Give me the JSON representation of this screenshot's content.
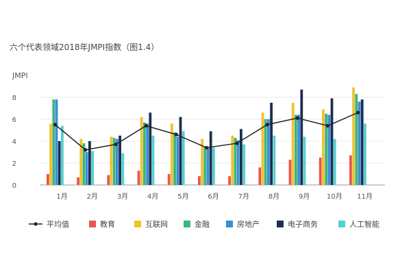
{
  "chart_data": {
    "type": "bar",
    "title": "六个代表领域2018年JMPI指数（图1.4）",
    "ylabel": "JMPI",
    "ylim": [
      0,
      9
    ],
    "yticks": [
      0,
      2,
      4,
      6,
      8
    ],
    "grid": true,
    "legend_position": "bottom",
    "categories": [
      "1月",
      "2月",
      "3月",
      "4月",
      "5月",
      "6月",
      "7月",
      "8月",
      "9月",
      "10月",
      "11月"
    ],
    "series": [
      {
        "name": "教育",
        "color": "#e8564e",
        "values": [
          1.0,
          0.7,
          0.9,
          1.3,
          1.0,
          0.8,
          0.8,
          1.6,
          2.3,
          2.5,
          2.7
        ]
      },
      {
        "name": "互联网",
        "color": "#f1c232",
        "values": [
          5.6,
          4.2,
          4.4,
          6.2,
          5.6,
          4.2,
          4.5,
          6.6,
          7.5,
          6.9,
          8.9
        ]
      },
      {
        "name": "金融",
        "color": "#3fb57a",
        "values": [
          7.8,
          3.8,
          4.3,
          5.7,
          4.8,
          3.5,
          4.3,
          6.0,
          6.4,
          6.5,
          8.3
        ]
      },
      {
        "name": "房地产",
        "color": "#3a8fd8",
        "values": [
          7.8,
          3.0,
          4.2,
          5.6,
          4.4,
          3.4,
          4.1,
          6.0,
          6.4,
          6.4,
          7.6
        ]
      },
      {
        "name": "电子商务",
        "color": "#1c2f4f",
        "values": [
          4.0,
          4.0,
          4.5,
          6.6,
          6.2,
          4.9,
          5.1,
          7.5,
          8.7,
          7.9,
          7.8
        ]
      },
      {
        "name": "人工智能",
        "color": "#56cfd0",
        "values": [
          5.4,
          3.1,
          2.9,
          4.5,
          4.9,
          3.4,
          3.7,
          4.5,
          4.4,
          4.2,
          5.6
        ]
      }
    ],
    "line_series": {
      "name": "平均值",
      "color": "#222222",
      "values": [
        5.5,
        3.2,
        3.7,
        5.4,
        4.6,
        3.4,
        3.8,
        5.5,
        6.1,
        5.4,
        6.6
      ]
    }
  }
}
